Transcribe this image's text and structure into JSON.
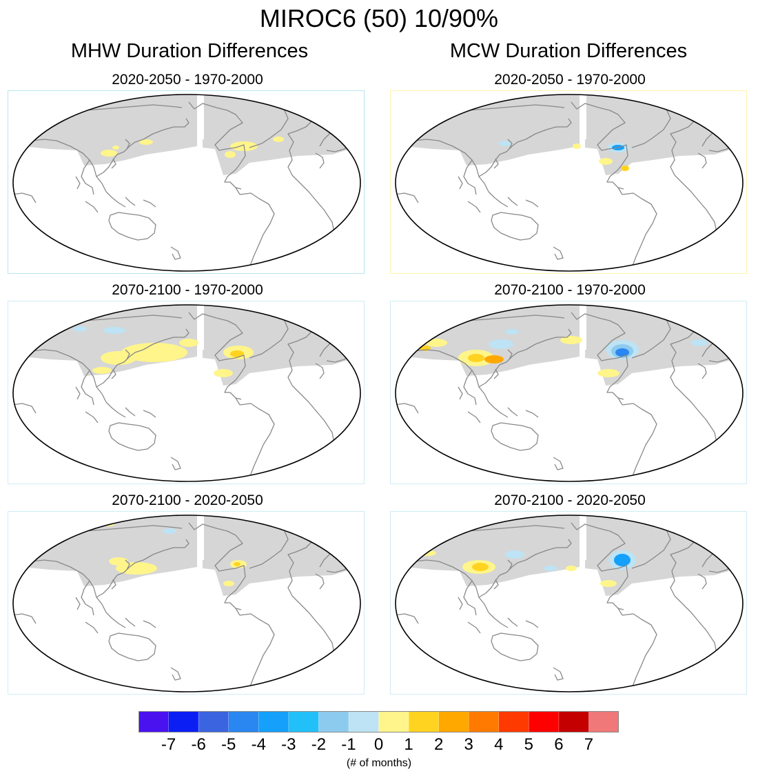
{
  "title": "MIROC6 (50) 10/90%",
  "columns": [
    {
      "title": "MHW Duration Differences",
      "panels": [
        {
          "subtitle": "2020-2050 - 1970-2000",
          "border": "#b8e4f0"
        },
        {
          "subtitle": "2070-2100 - 1970-2000",
          "border": "#d0ecf4"
        },
        {
          "subtitle": "2070-2100 - 2020-2050",
          "border": "#d0ecf4"
        }
      ]
    },
    {
      "title": "MCW Duration Differences",
      "panels": [
        {
          "subtitle": "2020-2050 - 1970-2000",
          "border": "#fff3a8"
        },
        {
          "subtitle": "2070-2100 - 1970-2000",
          "border": "#d0ecf4"
        },
        {
          "subtitle": "2070-2100 - 2020-2050",
          "border": "#d0ecf4"
        }
      ]
    }
  ],
  "colorbar": {
    "colors": [
      "#4b12f0",
      "#0b1ff5",
      "#3a64e0",
      "#2a86f0",
      "#14a0fb",
      "#22c0f8",
      "#8dcbee",
      "#bde3f4",
      "#fff58a",
      "#ffd320",
      "#ffa800",
      "#ff7a00",
      "#ff3a00",
      "#ff0000",
      "#c40000",
      "#f07878"
    ],
    "labels": [
      "-7",
      "-6",
      "-5",
      "-4",
      "-3",
      "-2",
      "-1",
      "0",
      "1",
      "2",
      "3",
      "4",
      "5",
      "6",
      "7"
    ],
    "units": "(# of months)"
  },
  "map_style": {
    "land_mask": "#d6d6d6",
    "coastline": "#888888",
    "outline": "#000000",
    "ocean": "#ffffff"
  }
}
